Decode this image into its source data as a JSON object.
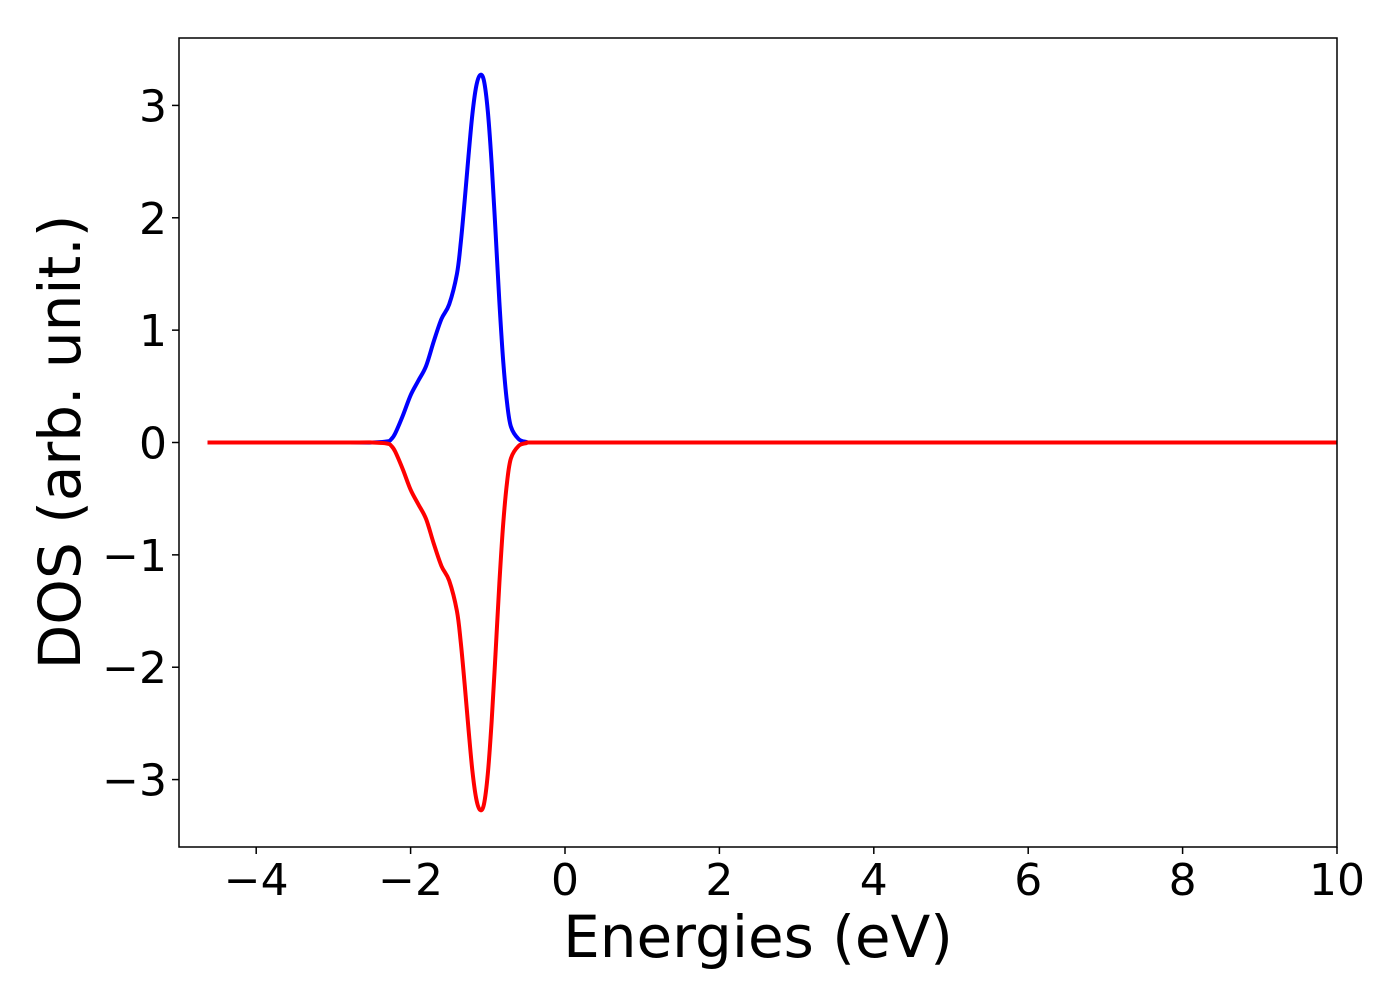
{
  "chart_data": {
    "type": "line",
    "title": "",
    "xlabel": "Energies (eV)",
    "ylabel": "DOS (arb. unit.)",
    "xlim": [
      -5,
      10
    ],
    "ylim": [
      -3.6,
      3.6
    ],
    "x_ticks": [
      -4,
      -2,
      0,
      2,
      4,
      6,
      8,
      10
    ],
    "x_tick_labels": [
      "−4",
      "−2",
      "0",
      "2",
      "4",
      "6",
      "8",
      "10"
    ],
    "y_ticks": [
      -3,
      -2,
      -1,
      0,
      1,
      2,
      3
    ],
    "y_tick_labels": [
      "−3",
      "−2",
      "−1",
      "0",
      "1",
      "2",
      "3"
    ],
    "grid": false,
    "legend": false,
    "series": [
      {
        "color": "#0000ff",
        "x": [
          -4.63,
          -2.8,
          -2.5,
          -2.3,
          -2.25,
          -2.2,
          -2.1,
          -2.0,
          -1.9,
          -1.8,
          -1.7,
          -1.6,
          -1.5,
          -1.4,
          -1.35,
          -1.3,
          -1.25,
          -1.2,
          -1.15,
          -1.1,
          -1.05,
          -1.0,
          -0.95,
          -0.9,
          -0.85,
          -0.8,
          -0.75,
          -0.7,
          -0.6,
          -0.5,
          -0.45,
          0.0,
          2.0,
          4.0,
          6.0,
          8.0,
          10.0
        ],
        "y": [
          0.0,
          0.0,
          0.0,
          0.01,
          0.03,
          0.08,
          0.24,
          0.42,
          0.55,
          0.68,
          0.9,
          1.1,
          1.23,
          1.5,
          1.78,
          2.15,
          2.55,
          2.92,
          3.17,
          3.27,
          3.22,
          2.95,
          2.48,
          1.88,
          1.25,
          0.72,
          0.35,
          0.14,
          0.03,
          0.005,
          0.0,
          0.0,
          0.0,
          0.0,
          0.0,
          0.0,
          0.0
        ]
      },
      {
        "color": "#ff0000",
        "x": [
          -4.63,
          -2.8,
          -2.5,
          -2.3,
          -2.25,
          -2.2,
          -2.1,
          -2.0,
          -1.9,
          -1.8,
          -1.7,
          -1.6,
          -1.5,
          -1.4,
          -1.35,
          -1.3,
          -1.25,
          -1.2,
          -1.15,
          -1.1,
          -1.05,
          -1.0,
          -0.95,
          -0.9,
          -0.85,
          -0.8,
          -0.75,
          -0.7,
          -0.6,
          -0.5,
          -0.45,
          0.0,
          2.0,
          4.0,
          6.0,
          8.0,
          10.0
        ],
        "y": [
          0.0,
          0.0,
          0.0,
          -0.01,
          -0.03,
          -0.08,
          -0.24,
          -0.42,
          -0.55,
          -0.68,
          -0.9,
          -1.1,
          -1.23,
          -1.5,
          -1.78,
          -2.15,
          -2.55,
          -2.92,
          -3.17,
          -3.27,
          -3.22,
          -2.95,
          -2.48,
          -1.88,
          -1.25,
          -0.72,
          -0.35,
          -0.14,
          -0.03,
          -0.005,
          0.0,
          0.0,
          0.0,
          0.0,
          0.0,
          0.0,
          0.0
        ]
      }
    ]
  }
}
